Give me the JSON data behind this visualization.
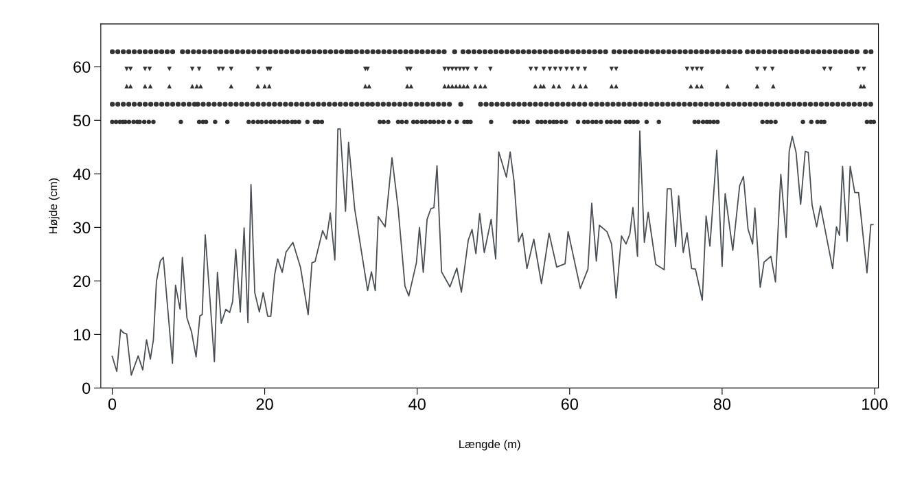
{
  "chart_data": {
    "type": "line",
    "xlabel": "Længde (m)",
    "ylabel": "Højde (cm)",
    "xlim": [
      -1.5,
      100.5
    ],
    "ylim": [
      0,
      68
    ],
    "xticks": [
      0,
      20,
      40,
      60,
      80,
      100
    ],
    "yticks": [
      0,
      10,
      20,
      30,
      40,
      50,
      60
    ],
    "grid": false,
    "legend": false,
    "series": [
      {
        "color": "#4a4f55",
        "line_style": "solid",
        "marker": "none",
        "x": [
          0,
          0.6,
          1.1,
          1.5,
          1.9,
          2.5,
          3.4,
          4.0,
          4.5,
          5.0,
          5.4,
          5.8,
          6.3,
          6.7,
          7.9,
          8.3,
          8.9,
          9.2,
          9.8,
          10.4,
          11.0,
          11.5,
          11.8,
          12.2,
          12.8,
          13.4,
          13.8,
          14.3,
          14.9,
          15.4,
          15.8,
          16.2,
          16.8,
          17.3,
          17.8,
          18.2,
          18.7,
          19.3,
          19.8,
          20.4,
          20.8,
          21.3,
          21.7,
          22.3,
          22.8,
          23.7,
          24.7,
          25.7,
          26.2,
          26.6,
          27.6,
          28.1,
          28.6,
          29.2,
          29.6,
          29.9,
          30.6,
          31.0,
          31.8,
          33.5,
          34.0,
          34.5,
          34.9,
          35.8,
          36.7,
          37.5,
          38.4,
          38.9,
          39.9,
          40.3,
          40.8,
          41.3,
          41.8,
          42.2,
          42.6,
          43.2,
          44.3,
          45.2,
          45.8,
          46.7,
          47.2,
          47.7,
          48.2,
          48.8,
          49.7,
          50.3,
          50.7,
          51.7,
          52.2,
          52.7,
          53.3,
          53.8,
          54.4,
          55.3,
          56.3,
          57.3,
          58.3,
          59.4,
          59.8,
          60.6,
          61.4,
          62.4,
          62.9,
          63.5,
          63.9,
          64.9,
          65.5,
          66.1,
          66.8,
          67.4,
          67.9,
          68.3,
          68.9,
          69.2,
          69.8,
          70.3,
          71.3,
          72.4,
          72.8,
          73.3,
          73.9,
          74.3,
          74.9,
          75.4,
          76.0,
          76.5,
          77.4,
          77.9,
          78.4,
          79.3,
          80.0,
          80.4,
          81.4,
          82.3,
          82.8,
          83.4,
          84.0,
          84.3,
          85.0,
          85.5,
          86.4,
          87.0,
          87.7,
          88.4,
          88.8,
          89.2,
          89.7,
          90.3,
          90.9,
          91.3,
          91.8,
          92.4,
          92.9,
          94.5,
          95.0,
          95.4,
          95.8,
          96.4,
          96.8,
          97.4,
          97.9,
          99.0,
          99.5,
          99.8
        ],
        "values": [
          5.9,
          3.1,
          10.9,
          10.3,
          10.1,
          2.4,
          6,
          3.4,
          9,
          5.4,
          9,
          19.9,
          23.7,
          24.4,
          4.6,
          19.2,
          14.7,
          24.4,
          13.1,
          10.5,
          5.8,
          13.5,
          13.7,
          28.6,
          17,
          4.9,
          21.6,
          12.1,
          14.7,
          14.1,
          16.2,
          25.9,
          14.2,
          29.9,
          12.2,
          38,
          17.8,
          14.2,
          17.8,
          13.4,
          13.4,
          21.1,
          24.1,
          21.6,
          25.4,
          27.2,
          22.5,
          13.7,
          23.4,
          23.6,
          29.4,
          27.8,
          32.7,
          23.9,
          48.4,
          48.4,
          33,
          45.9,
          33.5,
          18.2,
          21.7,
          18.2,
          32,
          30.1,
          43,
          33.6,
          19,
          17.2,
          23.4,
          30,
          21.6,
          31.5,
          33.5,
          33.7,
          41.5,
          21.7,
          18.9,
          22.4,
          17.9,
          27.6,
          29.6,
          25.1,
          32.6,
          25.3,
          31.5,
          24.1,
          44.1,
          39.4,
          44.1,
          38.7,
          27.3,
          28.9,
          22.3,
          27.8,
          19.5,
          28.9,
          22.6,
          23.2,
          29.2,
          23.9,
          18.6,
          22.2,
          34.5,
          23.7,
          30.4,
          29.2,
          26.9,
          16.8,
          28.4,
          26.9,
          28.8,
          33.7,
          24.6,
          48,
          27.2,
          32.8,
          23.1,
          22.1,
          37.2,
          37.2,
          26.4,
          35.9,
          25.3,
          29,
          22.3,
          22.2,
          16.4,
          32.1,
          26.5,
          44.4,
          22.7,
          36.3,
          25.7,
          37.8,
          39.5,
          29.7,
          26.9,
          33.6,
          18.8,
          23.5,
          24.6,
          19.8,
          39.9,
          28.1,
          44.2,
          47,
          44,
          34.3,
          44.2,
          44,
          34.2,
          30.1,
          34,
          22.3,
          30.1,
          28.5,
          41.4,
          27.4,
          41.4,
          36.5,
          36.5,
          21.5,
          30.5,
          30.5
        ]
      },
      {
        "type": "line",
        "color": "#333333",
        "line_style": "dotted",
        "marker": "none",
        "x": [
          0,
          8.6,
          8.9,
          9.2,
          27.3,
          27.6,
          27.9,
          30.9,
          31.1,
          31.3,
          44,
          44.5,
          44.9,
          45.3,
          45.6,
          46,
          65.3,
          65.5,
          65.8,
          76.8,
          77.0,
          77.3,
          82.7,
          83.0,
          83.3,
          98.3,
          98.5,
          98.8,
          99.9
        ],
        "values": [
          62.8,
          62.8,
          null,
          62.8,
          62.8,
          null,
          62.8,
          62.8,
          null,
          62.8,
          62.8,
          null,
          62.8,
          62.8,
          null,
          62.8,
          62.8,
          null,
          62.8,
          62.8,
          null,
          62.8,
          62.8,
          null,
          62.8,
          62.8,
          null,
          62.8,
          62.8
        ]
      },
      {
        "type": "line",
        "color": "#333333",
        "line_style": "dotted",
        "marker": "none",
        "x": [
          0,
          10.9,
          11.0,
          11.2,
          33.5,
          33.8,
          34.1,
          39.6,
          39.7,
          39.9,
          44.4,
          45.1,
          45.7,
          46.1,
          47.2,
          48.3,
          62.5,
          62.6,
          62.8,
          100
        ],
        "values": [
          53,
          53,
          null,
          53,
          53,
          null,
          53,
          53,
          null,
          53,
          53,
          null,
          53,
          53,
          null,
          53,
          53,
          null,
          53,
          53
        ]
      },
      {
        "type": "scatter",
        "color": "#333333",
        "marker": "circle",
        "x": [
          0,
          0.5,
          1.0,
          1.4,
          1.7,
          2.2,
          2.8,
          3.3,
          3.6,
          4.2,
          4.8,
          5.4,
          9.0,
          11.4,
          11.9,
          12.3,
          13.5,
          15.1,
          17.9,
          18.5,
          19.1,
          19.6,
          20.2,
          20.8,
          21.3,
          21.9,
          22.5,
          23.0,
          23.6,
          24.0,
          24.5,
          25.6,
          26.6,
          27.0,
          27.5,
          35.1,
          35.6,
          36.2,
          37.5,
          38.0,
          38.6,
          39.5,
          40.0,
          40.6,
          41.1,
          41.7,
          42.2,
          42.8,
          43.4,
          44.2,
          45.2,
          46.2,
          46.6,
          47.0,
          49.7,
          52.8,
          53.4,
          53.9,
          54.5,
          55.8,
          56.3,
          56.8,
          57.4,
          57.9,
          58.3,
          58.9,
          59.5,
          61.1,
          61.9,
          62.4,
          63.0,
          63.5,
          64.1,
          64.9,
          65.4,
          66.0,
          66.5,
          67.4,
          67.9,
          68.4,
          68.9,
          70.1,
          71.7,
          76.4,
          76.9,
          77.5,
          78.0,
          78.4,
          78.9,
          79.4,
          85.3,
          85.9,
          86.4,
          87.0,
          90.6,
          91.7,
          92.5,
          93.0,
          93.4,
          99.0,
          99.5,
          99.9
        ],
        "values": [
          49.7,
          49.7,
          49.7,
          49.7,
          49.7,
          49.7,
          49.7,
          49.7,
          49.7,
          49.7,
          49.7,
          49.7,
          49.7,
          49.7,
          49.7,
          49.7,
          49.7,
          49.7,
          49.7,
          49.7,
          49.7,
          49.7,
          49.7,
          49.7,
          49.7,
          49.7,
          49.7,
          49.7,
          49.7,
          49.7,
          49.7,
          49.7,
          49.7,
          49.7,
          49.7,
          49.7,
          49.7,
          49.7,
          49.7,
          49.7,
          49.7,
          49.7,
          49.7,
          49.7,
          49.7,
          49.7,
          49.7,
          49.7,
          49.7,
          49.7,
          49.7,
          49.7,
          49.7,
          49.7,
          49.7,
          49.7,
          49.7,
          49.7,
          49.7,
          49.7,
          49.7,
          49.7,
          49.7,
          49.7,
          49.7,
          49.7,
          49.7,
          49.7,
          49.7,
          49.7,
          49.7,
          49.7,
          49.7,
          49.7,
          49.7,
          49.7,
          49.7,
          49.7,
          49.7,
          49.7,
          49.7,
          49.7,
          49.7,
          49.7,
          49.7,
          49.7,
          49.7,
          49.7,
          49.7,
          49.7,
          49.7,
          49.7,
          49.7,
          49.7,
          49.7,
          49.7,
          49.7,
          49.7,
          49.7,
          49.7,
          49.7,
          49.7
        ]
      },
      {
        "type": "scatter",
        "color": "#333333",
        "marker": "triangle_down",
        "x": [
          1.9,
          2.4,
          4.3,
          4.9,
          7.5,
          10.5,
          11.4,
          14,
          14.5,
          15.6,
          19.1,
          20.4,
          20.7,
          33.2,
          33.5,
          38.7,
          39.1,
          43.6,
          44.1,
          44.6,
          45.1,
          45.6,
          46.1,
          46.6,
          47.7,
          49.6,
          54.9,
          55.6,
          56.6,
          57.4,
          58.1,
          58.8,
          59.6,
          60.3,
          61.1,
          62.0,
          65.5,
          66.1,
          75.4,
          76.1,
          76.7,
          77.3,
          84.6,
          85.6,
          86.6,
          93.4,
          94.2,
          97.9,
          98.6
        ],
        "values": [
          59.6,
          59.6,
          59.6,
          59.6,
          59.6,
          59.6,
          59.6,
          59.6,
          59.6,
          59.6,
          59.6,
          59.6,
          59.6,
          59.6,
          59.6,
          59.6,
          59.6,
          59.6,
          59.6,
          59.6,
          59.6,
          59.6,
          59.6,
          59.6,
          59.6,
          59.6,
          59.6,
          59.6,
          59.6,
          59.6,
          59.6,
          59.6,
          59.6,
          59.6,
          59.6,
          59.6,
          59.6,
          59.6,
          59.6,
          59.6,
          59.6,
          59.6,
          59.6,
          59.6,
          59.6,
          59.6,
          59.6,
          59.6,
          59.6
        ]
      },
      {
        "type": "scatter",
        "color": "#333333",
        "marker": "triangle",
        "x": [
          1.9,
          2.4,
          4.3,
          5.0,
          7.5,
          10.5,
          11.1,
          11.6,
          15.6,
          19.1,
          20.0,
          20.6,
          33.2,
          33.7,
          38.7,
          39.2,
          43.6,
          44.1,
          44.6,
          45.1,
          45.6,
          46.1,
          46.6,
          47.6,
          48.3,
          48.9,
          55.5,
          56.2,
          56.6,
          57.9,
          58.6,
          60.5,
          61.4,
          62.1,
          65.5,
          66.1,
          75.9,
          76.7,
          77.3,
          80.7,
          84.6,
          86.7,
          98.2,
          98.6
        ],
        "values": [
          56.4,
          56.4,
          56.4,
          56.4,
          56.4,
          56.4,
          56.4,
          56.4,
          56.4,
          56.4,
          56.4,
          56.4,
          56.4,
          56.4,
          56.4,
          56.4,
          56.4,
          56.4,
          56.4,
          56.4,
          56.4,
          56.4,
          56.4,
          56.4,
          56.4,
          56.4,
          56.4,
          56.4,
          56.4,
          56.4,
          56.4,
          56.4,
          56.4,
          56.4,
          56.4,
          56.4,
          56.4,
          56.4,
          56.4,
          56.4,
          56.4,
          56.4,
          56.4,
          56.4
        ]
      }
    ]
  }
}
